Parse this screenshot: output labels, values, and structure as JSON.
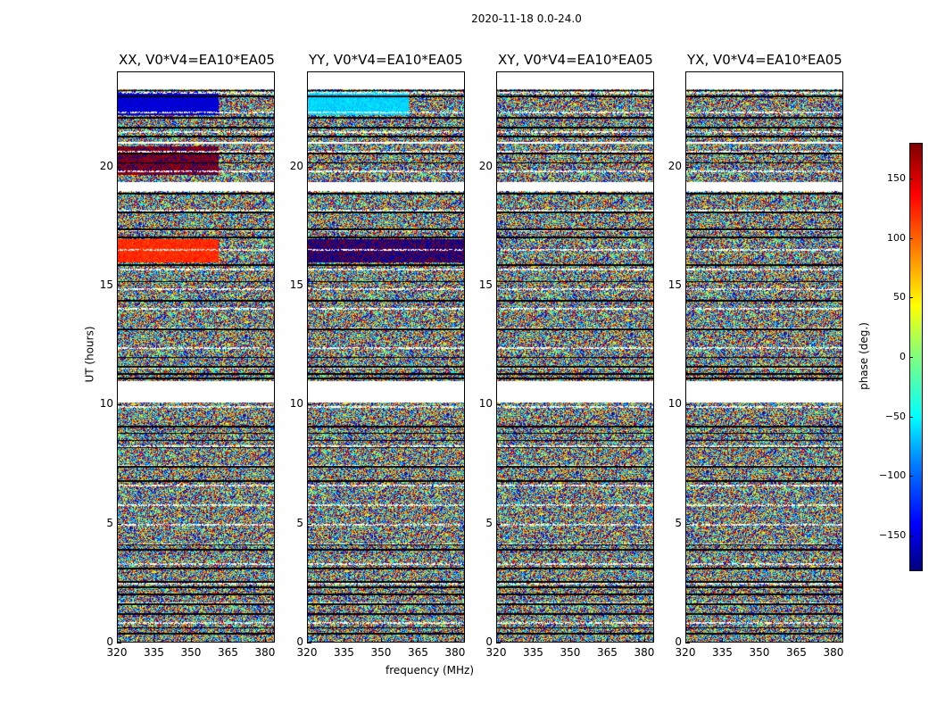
{
  "suptitle": "2020-11-18 0.0-24.0",
  "panels": [
    {
      "title": "XX, V0*V4=EA10*EA05"
    },
    {
      "title": "YY, V0*V4=EA10*EA05"
    },
    {
      "title": "XY, V0*V4=EA10*EA05"
    },
    {
      "title": "YX, V0*V4=EA10*EA05"
    }
  ],
  "ylabel": "UT (hours)",
  "xlabel": "frequency (MHz)",
  "cbar_label": "phase (deg.)",
  "ytick_labels": [
    "0",
    "5",
    "10",
    "15",
    "20"
  ],
  "xtick_labels": [
    "320",
    "335",
    "350",
    "365",
    "380"
  ],
  "cbar_tick_labels": [
    "−150",
    "−100",
    "−50",
    "0",
    "50",
    "100",
    "150"
  ],
  "chart_data": {
    "type": "heatmap",
    "title": "2020-11-18 0.0-24.0",
    "xlabel": "frequency (MHz)",
    "ylabel": "UT (hours)",
    "xlim": [
      320,
      384
    ],
    "ylim": [
      0,
      24
    ],
    "xticks": [
      320,
      335,
      350,
      365,
      380
    ],
    "yticks": [
      0,
      5,
      10,
      15,
      20
    ],
    "colorbar": {
      "label": "phase (deg.)",
      "range": [
        -180,
        180
      ],
      "ticks": [
        -150,
        -100,
        -50,
        0,
        50,
        100,
        150
      ],
      "colormap": "jet"
    },
    "panels": [
      "XX",
      "YY",
      "XY",
      "YX"
    ],
    "baseline": "V0*V4=EA10*EA05",
    "coherent_blocks": [
      {
        "panel": "XX",
        "ut": [
          16.0,
          17.0
        ],
        "freq": [
          320,
          361
        ],
        "phase": 120
      },
      {
        "panel": "XX",
        "ut": [
          22.2,
          23.2
        ],
        "freq": [
          320,
          361
        ],
        "phase": -150
      },
      {
        "panel": "XX",
        "ut": [
          19.7,
          20.9
        ],
        "freq": [
          320,
          361
        ],
        "phase": 175
      },
      {
        "panel": "YY",
        "ut": [
          16.0,
          17.0
        ],
        "freq": [
          320,
          384
        ],
        "phase": -175
      },
      {
        "panel": "YY",
        "ut": [
          22.2,
          23.2
        ],
        "freq": [
          320,
          361
        ],
        "phase": -60
      }
    ]
  }
}
